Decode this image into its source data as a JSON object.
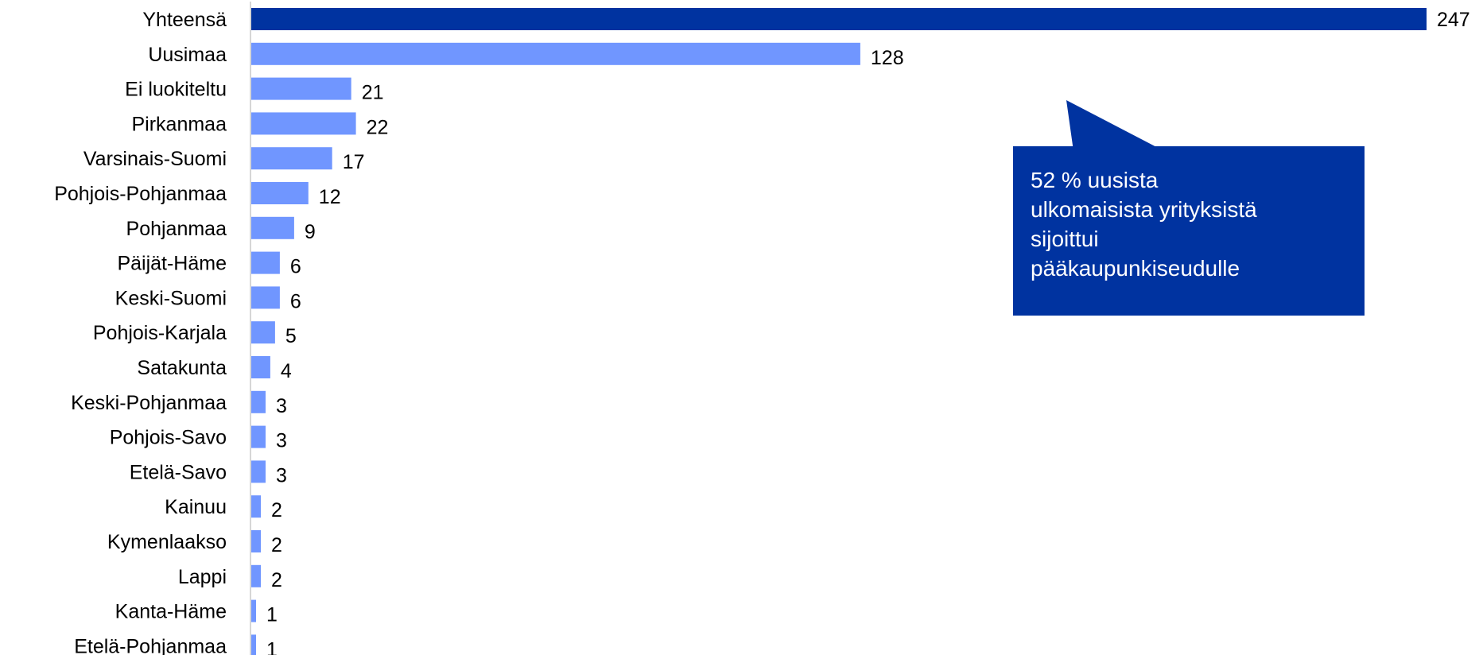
{
  "chart_data": {
    "type": "bar",
    "orientation": "horizontal",
    "categories": [
      "Yhteensä",
      "Uusimaa",
      "Ei luokiteltu",
      "Pirkanmaa",
      "Varsinais-Suomi",
      "Pohjois-Pohjanmaa",
      "Pohjanmaa",
      "Päijät-Häme",
      "Keski-Suomi",
      "Pohjois-Karjala",
      "Satakunta",
      "Keski-Pohjanmaa",
      "Pohjois-Savo",
      "Etelä-Savo",
      "Kainuu",
      "Kymenlaakso",
      "Lappi",
      "Kanta-Häme",
      "Etelä-Pohjanmaa"
    ],
    "values": [
      247,
      128,
      21,
      22,
      17,
      12,
      9,
      6,
      6,
      5,
      4,
      3,
      3,
      3,
      2,
      2,
      2,
      1,
      1
    ],
    "value_labels": [
      "247",
      "128",
      "21",
      "22",
      "17",
      "12",
      "9",
      "6",
      "6",
      "5",
      "4",
      "3",
      "3",
      "3",
      "2",
      "2",
      "2",
      "1",
      "1"
    ],
    "xlim": [
      0,
      247
    ],
    "grid": false,
    "legend": "none",
    "colors": {
      "total_bar": "#0033a0",
      "bar": "#7096ff",
      "axis": "#c8c8c8",
      "text": "#000000"
    },
    "annotation": {
      "text_lines": [
        "52 % uusista",
        "ulkomaisista yrityksistä",
        "sijoittui",
        "pääkaupunkiseudulle"
      ],
      "background": "#0033a0",
      "text_color": "#ffffff"
    }
  }
}
